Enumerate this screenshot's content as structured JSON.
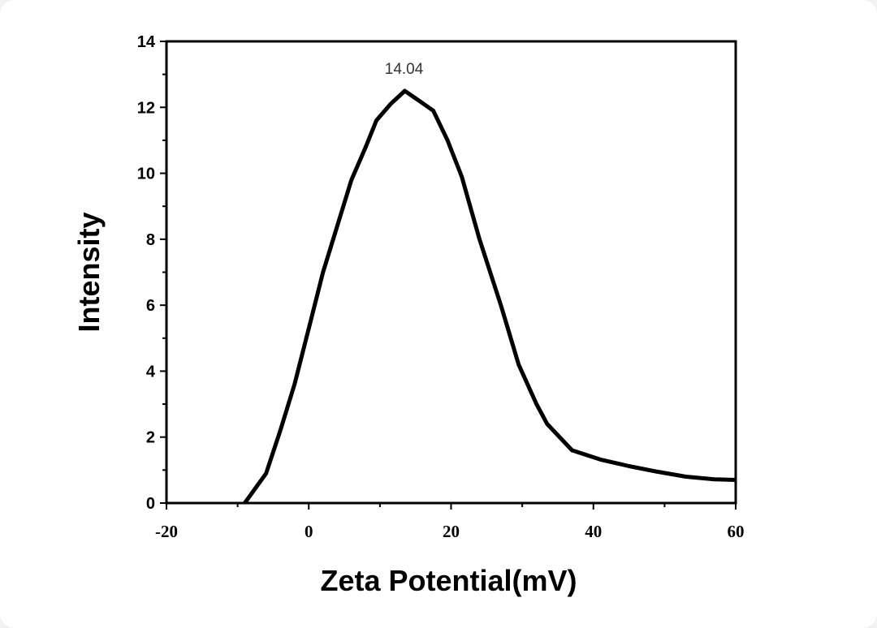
{
  "chart_data": {
    "type": "line",
    "title": "",
    "xlabel": "Zeta Potential(mV)",
    "ylabel": "Intensity",
    "xlim": [
      -20,
      60
    ],
    "ylim": [
      0,
      14
    ],
    "xticks": [
      -20,
      0,
      20,
      40,
      60
    ],
    "xtick_labels": [
      "-20",
      "0",
      "20",
      "40",
      "60"
    ],
    "yticks": [
      0,
      2,
      4,
      6,
      8,
      10,
      12,
      14
    ],
    "ytick_labels": [
      "0",
      "2",
      "4",
      "6",
      "8",
      "10",
      "12",
      "14"
    ],
    "grid": false,
    "series": [
      {
        "color": "#000000",
        "x": [
          -9.0,
          -6.0,
          -4.0,
          -2.0,
          0.0,
          2.0,
          4.0,
          6.0,
          8.0,
          9.5,
          11.5,
          13.5,
          15.5,
          17.5,
          19.5,
          21.5,
          24.0,
          27.0,
          29.5,
          32.0,
          33.5,
          37.0,
          41.0,
          45.0,
          49.0,
          53.0,
          57.0,
          60.0
        ],
        "y": [
          0.0,
          0.9,
          2.2,
          3.6,
          5.3,
          7.0,
          8.4,
          9.8,
          10.8,
          11.6,
          12.1,
          12.5,
          12.2,
          11.9,
          11.0,
          9.9,
          8.0,
          6.0,
          4.2,
          3.0,
          2.4,
          1.6,
          1.32,
          1.12,
          0.95,
          0.8,
          0.72,
          0.7
        ]
      }
    ],
    "annotations": [
      {
        "text": "14.04",
        "x": 13.5,
        "y": 12.5
      }
    ]
  }
}
